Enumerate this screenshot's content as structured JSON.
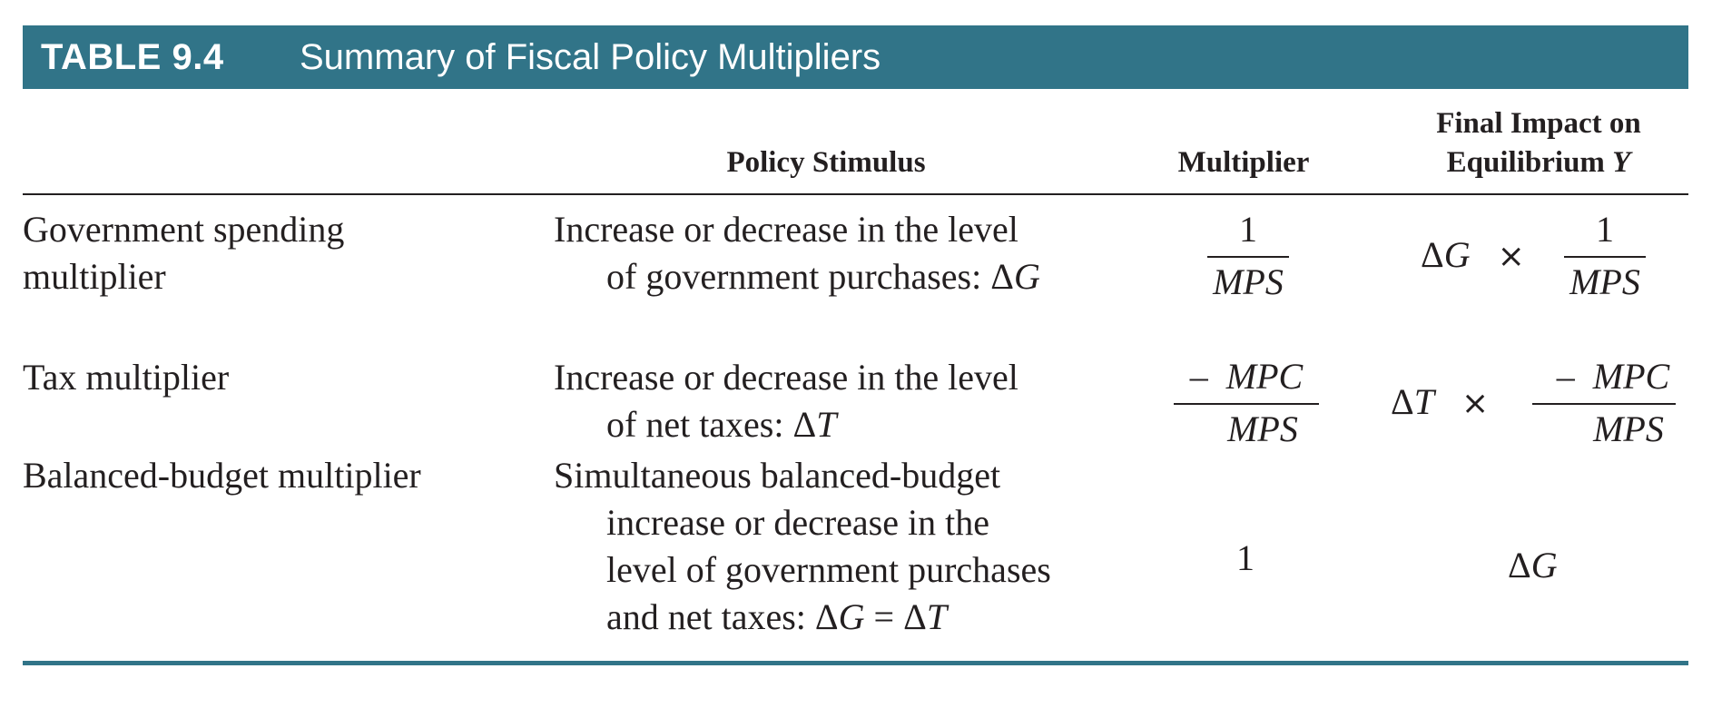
{
  "table": {
    "number": "TABLE 9.4",
    "title": "Summary of Fiscal Policy Multipliers"
  },
  "headers": {
    "policy_stimulus": "Policy Stimulus",
    "multiplier": "Multiplier",
    "final_impact_line1": "Final Impact on",
    "final_impact_line2_prefix": "Equilibrium",
    "final_impact_line2_var": "Y"
  },
  "rows": [
    {
      "name_line1": "Government spending",
      "name_line2": "multiplier",
      "stimulus_line1": "Increase or decrease in the level",
      "stimulus_line2_prefix": "of government purchases: Δ",
      "stimulus_line2_var": "G",
      "multiplier_num": "1",
      "multiplier_den": "MPS",
      "impact_delta": "Δ",
      "impact_var": "G",
      "impact_times": "×",
      "impact_num": "1",
      "impact_den": "MPS"
    },
    {
      "name_line1": "Tax multiplier",
      "stimulus_line1": "Increase or decrease in the level",
      "stimulus_line2_prefix": "of net taxes: Δ",
      "stimulus_line2_var": "T",
      "multiplier_num_sign": "–",
      "multiplier_num": "MPC",
      "multiplier_den": "MPS",
      "impact_delta": "Δ",
      "impact_var": "T",
      "impact_times": "×",
      "impact_num_sign": "–",
      "impact_num": "MPC",
      "impact_den": "MPS"
    },
    {
      "name_line1": "Balanced-budget multiplier",
      "stimulus_line1": "Simultaneous balanced-budget",
      "stimulus_line2": "increase or decrease in the",
      "stimulus_line3": "level of government purchases",
      "stimulus_line4_prefix": "and net taxes: Δ",
      "stimulus_line4_var1": "G",
      "stimulus_line4_mid": " = Δ",
      "stimulus_line4_var2": "T",
      "multiplier": "1",
      "impact_delta": "Δ",
      "impact_var": "G"
    }
  ],
  "colors": {
    "accent": "#317488",
    "text": "#231f20",
    "title_text": "#ffffff"
  }
}
